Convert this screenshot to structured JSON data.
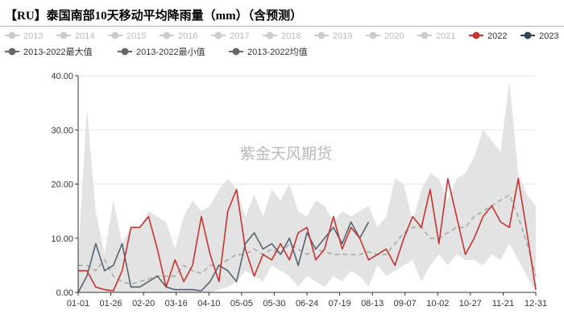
{
  "chart_data": {
    "type": "line",
    "title": "【RU】泰国南部10天移动平均降雨量（mm）（含预测）",
    "watermark": "紫金天风期货",
    "xlabel": "",
    "ylabel": "",
    "ylim": [
      0,
      40
    ],
    "y_ticks": [
      "0.00",
      "10.00",
      "20.00",
      "30.00",
      "40.00"
    ],
    "x_ticks": [
      "01-01",
      "01-26",
      "02-20",
      "03-16",
      "04-10",
      "05-05",
      "05-30",
      "06-24",
      "07-19",
      "08-13",
      "09-07",
      "10-02",
      "10-27",
      "11-21",
      "12-31"
    ],
    "grid": true,
    "legend_position": "top",
    "legend": [
      {
        "label": "2013",
        "color": "#cccccc",
        "active": false
      },
      {
        "label": "2014",
        "color": "#cccccc",
        "active": false
      },
      {
        "label": "2015",
        "color": "#cccccc",
        "active": false
      },
      {
        "label": "2016",
        "color": "#cccccc",
        "active": false
      },
      {
        "label": "2017",
        "color": "#cccccc",
        "active": false
      },
      {
        "label": "2018",
        "color": "#cccccc",
        "active": false
      },
      {
        "label": "2019",
        "color": "#cccccc",
        "active": false
      },
      {
        "label": "2020",
        "color": "#cccccc",
        "active": false
      },
      {
        "label": "2021",
        "color": "#cccccc",
        "active": false
      },
      {
        "label": "2022",
        "color": "#c23531",
        "active": true
      },
      {
        "label": "2023",
        "color": "#2f4554",
        "active": true
      },
      {
        "label": "2013-2022最大值",
        "color": "#666666",
        "active": true
      },
      {
        "label": "2013-2022最小值",
        "color": "#666666",
        "active": true
      },
      {
        "label": "2013-2022均值",
        "color": "#666666",
        "active": true
      }
    ],
    "series_colors": {
      "s2022": "#c23531",
      "s2023": "#546570",
      "band": "#e3e3e3",
      "mean": "#aaaaaa"
    },
    "day_of_year": [
      1,
      8,
      15,
      22,
      29,
      36,
      43,
      50,
      57,
      64,
      71,
      78,
      85,
      92,
      99,
      106,
      113,
      120,
      127,
      134,
      141,
      148,
      155,
      162,
      169,
      176,
      183,
      190,
      197,
      204,
      211,
      218,
      225,
      232,
      239,
      246,
      253,
      260,
      267,
      274,
      281,
      288,
      295,
      302,
      309,
      316,
      323,
      330,
      337,
      344,
      351,
      358,
      365
    ],
    "series": [
      {
        "name": "2013-2022最大值",
        "values": [
          6.5,
          34,
          15,
          7,
          17,
          9,
          12,
          12,
          15,
          14,
          13,
          8,
          14,
          17,
          15,
          16,
          19,
          21,
          19,
          14,
          18,
          14,
          19,
          17,
          20,
          15,
          14,
          17,
          16,
          13,
          15,
          14,
          15,
          16,
          12,
          14,
          21,
          20,
          13,
          19,
          22,
          21,
          17,
          21,
          22,
          25,
          30,
          28,
          26,
          39,
          22,
          18,
          16
        ]
      },
      {
        "name": "2013-2022最小值",
        "values": [
          0,
          0,
          0,
          0,
          0,
          0,
          0,
          0,
          0,
          0,
          0,
          0,
          0,
          0,
          0,
          0,
          0.5,
          1,
          2,
          4,
          3,
          2,
          5,
          4,
          3,
          1,
          3,
          2,
          1,
          3,
          2,
          4,
          3,
          1,
          5,
          3,
          4,
          5,
          6,
          2,
          5,
          7,
          5,
          7,
          6,
          6,
          5,
          7,
          6,
          9,
          6,
          3,
          0
        ]
      },
      {
        "name": "2013-2022均值",
        "values": [
          5,
          5,
          4,
          6,
          3,
          2,
          1.5,
          2,
          2.5,
          3,
          3,
          3,
          5,
          4,
          3.5,
          5,
          5,
          6,
          7,
          7,
          8,
          7,
          8,
          7,
          9,
          8,
          7,
          8,
          7.5,
          7,
          7,
          7,
          7,
          7.5,
          7,
          7,
          9,
          11,
          12,
          12,
          10,
          10,
          11,
          12,
          12,
          14,
          15,
          16,
          17,
          18,
          14,
          9,
          3
        ]
      },
      {
        "name": "2022",
        "values": [
          4,
          4,
          1,
          0.5,
          0.3,
          4,
          12,
          12,
          14,
          8,
          1,
          6,
          2,
          5,
          14,
          7,
          2,
          15,
          19,
          8,
          3,
          7,
          6,
          9,
          6,
          11,
          12,
          6,
          8,
          14,
          8,
          12,
          10,
          6,
          7,
          8,
          5,
          10,
          14,
          12,
          19,
          9,
          21,
          14,
          7,
          10,
          14,
          16,
          13,
          12,
          21,
          11,
          0.5
        ]
      },
      {
        "name": "2023",
        "values": [
          0,
          3,
          9,
          4,
          5,
          9,
          1,
          1,
          2,
          3,
          1,
          0.5,
          0.5,
          0.5,
          0.3,
          2,
          5,
          4,
          2,
          9,
          11,
          8,
          9,
          7,
          10,
          5,
          11,
          8,
          10,
          12,
          9,
          13,
          10,
          13
        ]
      }
    ]
  }
}
